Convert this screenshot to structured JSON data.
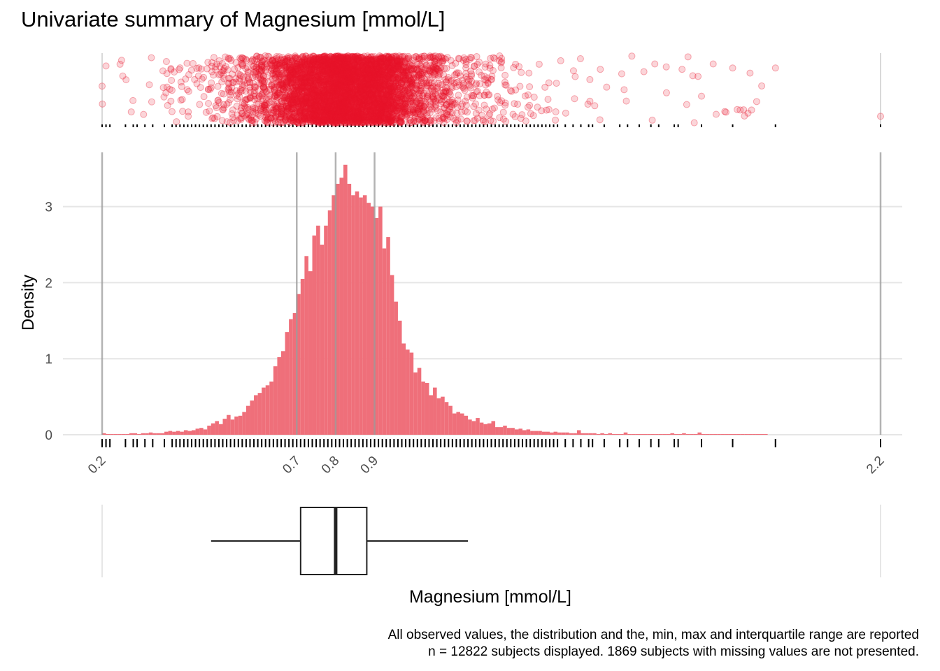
{
  "title": "Univariate summary of Magnesium [mmol/L]",
  "caption_line1": "All observed values, the distribution and the, min, max and interquartile range are reported",
  "caption_line2": "n = 12822 subjects displayed. 1869 subjects with missing values are not presented.",
  "colors": {
    "hist_fill": "#ef6f7a",
    "points": "#e8142a",
    "grid": "#e6e6e6",
    "ref_lines": "#999999",
    "box": "#222222"
  },
  "chart_data": {
    "type": "bar",
    "xlabel": "Magnesium [mmol/L]",
    "ylabel": "Density",
    "x_ticks": [
      "0.2",
      "0.7",
      "0.8",
      "0.9",
      "2.2"
    ],
    "y_ticks": [
      "0",
      "1",
      "2",
      "3"
    ],
    "xlim": [
      0.2,
      2.2
    ],
    "ylim": [
      0,
      3.7
    ],
    "grid": true,
    "reference_lines_x": [
      0.2,
      0.7,
      0.8,
      0.9,
      2.2
    ],
    "histogram": {
      "bin_width": 0.01,
      "x_start": 0.2,
      "density": [
        0.02,
        0.01,
        0.01,
        0.01,
        0.01,
        0.01,
        0.01,
        0.02,
        0.02,
        0.01,
        0.02,
        0.02,
        0.03,
        0.02,
        0.02,
        0.02,
        0.04,
        0.05,
        0.04,
        0.05,
        0.04,
        0.06,
        0.05,
        0.06,
        0.08,
        0.09,
        0.07,
        0.12,
        0.15,
        0.18,
        0.14,
        0.21,
        0.26,
        0.2,
        0.24,
        0.25,
        0.3,
        0.38,
        0.45,
        0.52,
        0.55,
        0.62,
        0.65,
        0.7,
        0.9,
        1.02,
        1.1,
        1.35,
        1.52,
        1.6,
        1.85,
        2.05,
        2.35,
        2.15,
        2.62,
        2.75,
        2.5,
        2.75,
        2.95,
        3.15,
        3.3,
        3.38,
        3.55,
        3.3,
        3.15,
        3.2,
        3.12,
        3.15,
        3.05,
        3.0,
        2.85,
        3.0,
        2.45,
        2.6,
        2.1,
        1.75,
        1.5,
        1.2,
        1.12,
        1.08,
        0.82,
        0.88,
        0.7,
        0.68,
        0.52,
        0.62,
        0.48,
        0.5,
        0.43,
        0.38,
        0.28,
        0.3,
        0.28,
        0.25,
        0.2,
        0.18,
        0.22,
        0.16,
        0.14,
        0.15,
        0.18,
        0.1,
        0.1,
        0.12,
        0.09,
        0.09,
        0.07,
        0.08,
        0.06,
        0.07,
        0.05,
        0.05,
        0.05,
        0.04,
        0.04,
        0.03,
        0.04,
        0.03,
        0.03,
        0.03,
        0.02,
        0.02,
        0.06,
        0.02,
        0.02,
        0.02,
        0.02,
        0.01,
        0.02,
        0.01,
        0.02,
        0.01,
        0.01,
        0.01,
        0.03,
        0.01,
        0.01,
        0.01,
        0.01,
        0.01,
        0.01,
        0.01,
        0.01,
        0.01,
        0.01,
        0.01,
        0.02,
        0.01,
        0.01,
        0.02,
        0.01,
        0.01,
        0.01,
        0.03,
        0.01,
        0.01,
        0.01,
        0.01,
        0.01,
        0.01,
        0.01,
        0.01,
        0.01,
        0.01,
        0.01,
        0.01,
        0.01,
        0.01,
        0.01,
        0.01,
        0.01
      ]
    },
    "boxplot": {
      "whisker_low": 0.48,
      "q1": 0.71,
      "median": 0.8,
      "q3": 0.88,
      "whisker_high": 1.14
    },
    "sparse_rug_values": [
      0.2,
      0.21,
      0.22,
      0.26,
      0.28,
      0.29,
      0.31,
      0.33,
      0.36,
      0.38,
      1.37,
      1.39,
      1.41,
      1.43,
      1.45,
      1.46,
      1.49,
      1.53,
      1.55,
      1.58,
      1.61,
      1.63,
      1.67,
      1.68,
      1.74,
      1.82,
      1.93,
      2.2
    ],
    "outlier_points": [
      {
        "x": 0.2,
        "y": 0.45
      },
      {
        "x": 0.21,
        "y": 0.15
      },
      {
        "x": 1.48,
        "y": 0.2
      },
      {
        "x": 1.62,
        "y": 0.12
      },
      {
        "x": 1.65,
        "y": 0.55
      },
      {
        "x": 1.69,
        "y": 0.2
      },
      {
        "x": 1.74,
        "y": 0.6
      },
      {
        "x": 1.77,
        "y": 0.12
      },
      {
        "x": 1.82,
        "y": 0.18
      },
      {
        "x": 1.93,
        "y": 0.18
      },
      {
        "x": 2.2,
        "y": 0.9
      }
    ]
  }
}
